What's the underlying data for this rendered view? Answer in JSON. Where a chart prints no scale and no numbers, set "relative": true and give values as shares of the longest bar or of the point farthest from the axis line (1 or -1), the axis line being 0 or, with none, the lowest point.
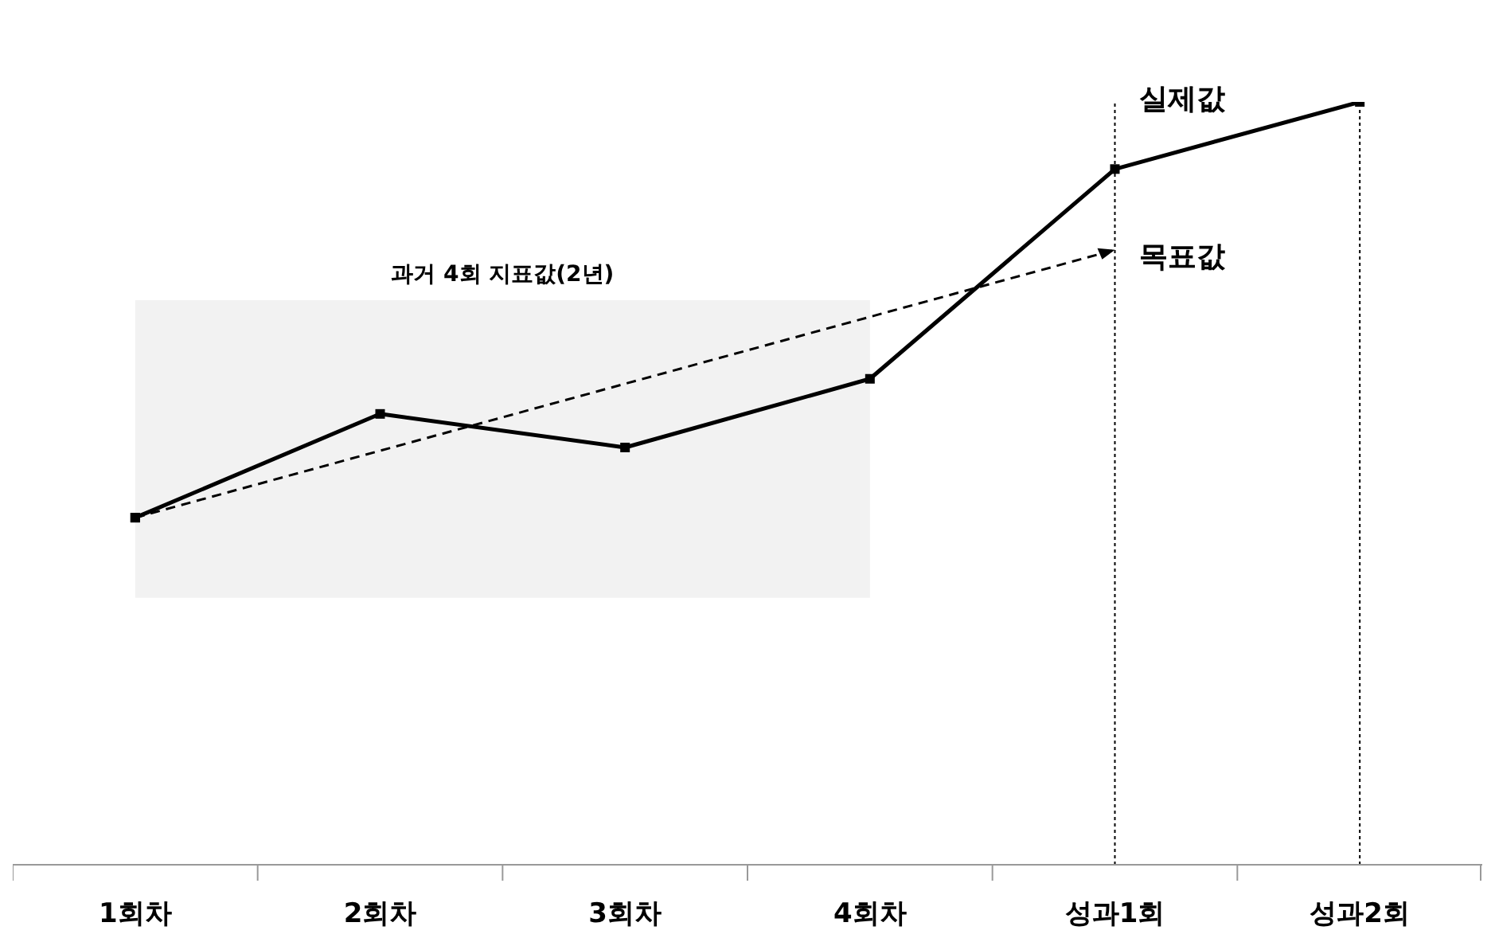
{
  "chart_data": {
    "type": "line",
    "relative": true,
    "categories": [
      "1회차",
      "2회차",
      "3회차",
      "4회차",
      "성과1회",
      "성과2회"
    ],
    "series": [
      {
        "name": "실제값",
        "color": "#000000",
        "values": [
          0.455,
          0.591,
          0.547,
          0.637,
          0.912,
          1
        ],
        "marker": "square",
        "line_style": "solid"
      },
      {
        "name": "목표값",
        "color": "#000000",
        "values": [
          0.455,
          null,
          null,
          null,
          0.806,
          null
        ],
        "marker": "square",
        "line_style": "dashed"
      }
    ],
    "bands": [
      {
        "axis": "x",
        "from": "1회차",
        "to": "4회차",
        "label": "과거 4회 지표값(2년)",
        "color": "#f2f2f2"
      }
    ],
    "ref_lines": [
      {
        "axis": "x",
        "value": "성과1회",
        "label": null,
        "line_style": "dotted",
        "color": "#000000"
      },
      {
        "axis": "x",
        "value": "성과2회",
        "label": null,
        "line_style": "dotted",
        "color": "#000000"
      }
    ],
    "grid": false,
    "legend": false
  }
}
